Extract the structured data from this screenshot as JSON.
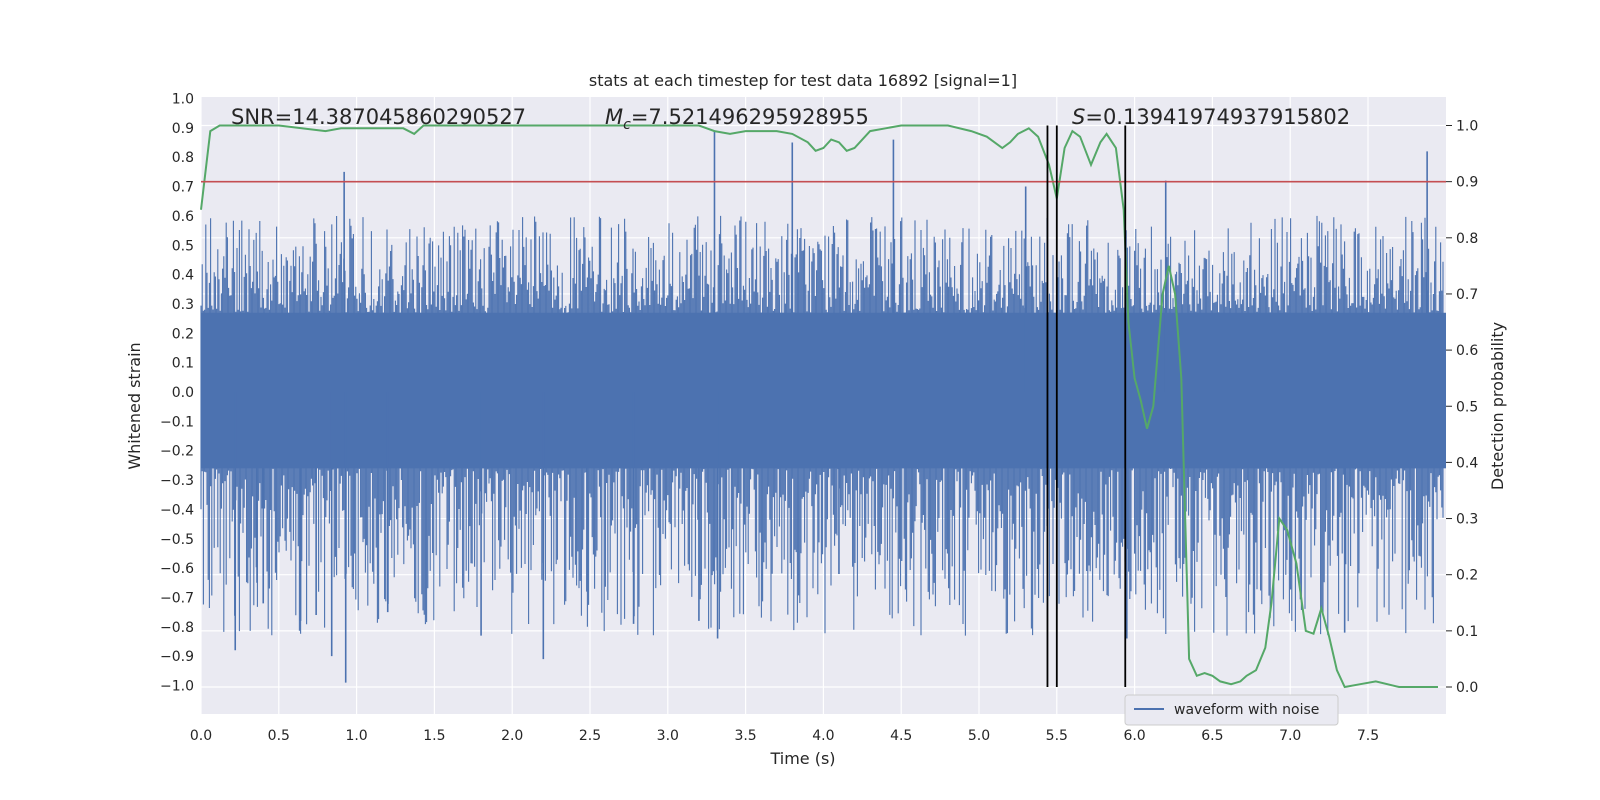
{
  "chart_data": {
    "type": "line",
    "title": "stats at each timestep for test data 16892 [signal=1]",
    "xlabel": "Time (s)",
    "ylabel": "Whitened strain",
    "ylabel_right": "Detection probability",
    "xlim": [
      0.0,
      8.0
    ],
    "ylim": [
      -1.1,
      1.0
    ],
    "ylim_right": [
      -0.05,
      1.05
    ],
    "x_ticks": [
      "0.0",
      "0.5",
      "1.0",
      "1.5",
      "2.0",
      "2.5",
      "3.0",
      "3.5",
      "4.0",
      "4.5",
      "5.0",
      "5.5",
      "6.0",
      "6.5",
      "7.0",
      "7.5"
    ],
    "y_ticks": [
      "1.0",
      "0.9",
      "0.8",
      "0.7",
      "0.6",
      "0.5",
      "0.4",
      "0.3",
      "0.2",
      "0.1",
      "0.0",
      "−0.1",
      "−0.2",
      "−0.3",
      "−0.4",
      "−0.5",
      "−0.6",
      "−0.7",
      "−0.8",
      "−0.9",
      "−1.0"
    ],
    "y_ticks_right": [
      "1.0",
      "0.9",
      "0.8",
      "0.7",
      "0.6",
      "0.5",
      "0.4",
      "0.3",
      "0.2",
      "0.1",
      "0.0"
    ],
    "grid": true,
    "legend_placement": "lower-right",
    "annotations": {
      "snr": "SNR=14.387045860290527",
      "mc_symbol": "M",
      "mc_sub": "c",
      "mc_value": "=7.521496295928955",
      "s_symbol": "S",
      "s_value": "=0.13941974937915802"
    },
    "series": [
      {
        "name": "waveform with noise",
        "axis": "left",
        "color": "#4c72b0",
        "envelope_typical": [
          -0.45,
          0.48
        ],
        "spikes": [
          [
            0.22,
            -0.88
          ],
          [
            0.36,
            -0.65
          ],
          [
            0.4,
            -0.72
          ],
          [
            0.64,
            -0.78
          ],
          [
            0.74,
            -0.76
          ],
          [
            0.84,
            -0.9
          ],
          [
            0.92,
            0.75
          ],
          [
            0.93,
            -0.99
          ],
          [
            1.2,
            -0.75
          ],
          [
            1.8,
            -0.83
          ],
          [
            2.2,
            -0.91
          ],
          [
            2.48,
            -0.68
          ],
          [
            2.78,
            -0.79
          ],
          [
            3.2,
            -0.78
          ],
          [
            3.3,
            0.89
          ],
          [
            3.32,
            -0.84
          ],
          [
            3.8,
            0.85
          ],
          [
            4.1,
            -0.62
          ],
          [
            4.45,
            0.86
          ],
          [
            5.3,
            0.7
          ],
          [
            5.5,
            -0.74
          ],
          [
            5.95,
            -0.84
          ],
          [
            6.2,
            0.72
          ],
          [
            7.35,
            -0.82
          ],
          [
            7.88,
            0.82
          ]
        ]
      },
      {
        "name": "detection probability",
        "axis": "right",
        "color": "#55a868",
        "x": [
          0.0,
          0.06,
          0.12,
          0.5,
          0.8,
          0.9,
          1.3,
          1.37,
          1.43,
          1.5,
          2.5,
          3.2,
          3.3,
          3.4,
          3.5,
          3.7,
          3.8,
          3.9,
          3.95,
          4.0,
          4.05,
          4.1,
          4.15,
          4.2,
          4.3,
          4.4,
          4.5,
          4.8,
          4.95,
          5.05,
          5.15,
          5.2,
          5.25,
          5.32,
          5.38,
          5.45,
          5.5,
          5.55,
          5.6,
          5.65,
          5.72,
          5.78,
          5.82,
          5.88,
          5.93,
          5.96,
          6.0,
          6.04,
          6.08,
          6.12,
          6.18,
          6.22,
          6.26,
          6.3,
          6.35,
          6.4,
          6.45,
          6.5,
          6.55,
          6.62,
          6.68,
          6.72,
          6.78,
          6.84,
          6.88,
          6.93,
          6.98,
          7.04,
          7.1,
          7.15,
          7.2,
          7.25,
          7.3,
          7.35,
          7.45,
          7.55,
          7.7,
          7.85,
          7.95
        ],
        "values": [
          0.85,
          0.99,
          1.0,
          1.0,
          0.99,
          0.995,
          0.995,
          0.985,
          1.0,
          1.0,
          1.0,
          1.0,
          0.99,
          0.985,
          0.99,
          0.99,
          0.985,
          0.97,
          0.955,
          0.96,
          0.975,
          0.97,
          0.955,
          0.96,
          0.99,
          0.995,
          1.0,
          1.0,
          0.99,
          0.98,
          0.96,
          0.97,
          0.985,
          0.995,
          0.98,
          0.93,
          0.87,
          0.96,
          0.99,
          0.98,
          0.93,
          0.97,
          0.985,
          0.96,
          0.85,
          0.65,
          0.55,
          0.51,
          0.46,
          0.5,
          0.7,
          0.75,
          0.7,
          0.55,
          0.05,
          0.02,
          0.025,
          0.02,
          0.01,
          0.005,
          0.01,
          0.02,
          0.03,
          0.07,
          0.15,
          0.3,
          0.28,
          0.22,
          0.1,
          0.095,
          0.14,
          0.09,
          0.03,
          0.0,
          0.005,
          0.01,
          0.0,
          0.0,
          0.0
        ]
      }
    ],
    "reference_lines": {
      "horizontal_red": {
        "y_right": 0.9,
        "color": "#c44e52"
      },
      "vertical_black": [
        5.44,
        5.5,
        5.94
      ]
    }
  }
}
